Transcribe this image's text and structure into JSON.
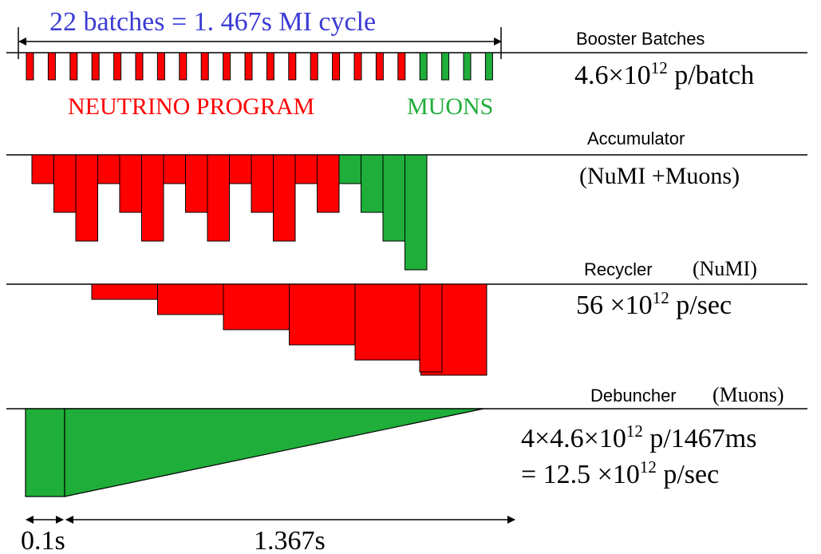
{
  "title": "22 batches = 1. 467s MI cycle",
  "colors": {
    "title": "#3b3bd6",
    "red": "#ff0000",
    "green": "#1fae3a",
    "line": "#000000"
  },
  "booster": {
    "label": "Booster Batches",
    "value_text": "4.6×10^12 p/batch",
    "value_parts": [
      "4.6×10",
      "12",
      " p/batch"
    ],
    "batch_count": 22,
    "neutrino_batches": 18,
    "muon_batches": 4,
    "neutrino_label": "NEUTRINO PROGRAM",
    "muon_label": "MUONS"
  },
  "accumulator": {
    "label": "Accumulator",
    "sublabel": "(NuMI +Muons)",
    "red_depths": [
      1,
      2,
      3,
      1,
      2,
      3,
      1,
      2,
      3,
      1,
      2,
      3,
      1,
      2
    ],
    "green_depths": [
      1,
      2,
      3,
      4
    ]
  },
  "recycler": {
    "label": "Recycler",
    "sublabel": "(NuMI)",
    "value_parts": [
      "56 ×10",
      "12",
      " p/sec"
    ],
    "steps": [
      1,
      2,
      3,
      4,
      5,
      6
    ]
  },
  "debuncher": {
    "label": "Debuncher",
    "sublabel": "(Muons)",
    "line1_parts": [
      "4×4.6×10",
      "12",
      " p/1467ms"
    ],
    "line2_parts": [
      "=  12.5 ×10",
      "12",
      " p/sec"
    ]
  },
  "timing": {
    "first": "0.1s",
    "second": "1.367s"
  }
}
